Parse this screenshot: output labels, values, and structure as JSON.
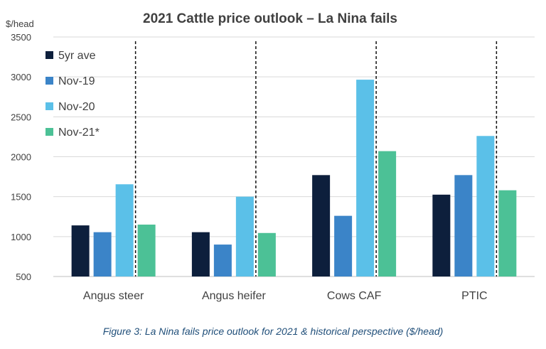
{
  "chart_data": {
    "type": "bar",
    "title": "2021 Cattle price outlook – La Nina fails",
    "ylabel": "$/head",
    "ylim": [
      500,
      3500
    ],
    "yticks": [
      500,
      1000,
      1500,
      2000,
      2500,
      3000,
      3500
    ],
    "grid": true,
    "legend_position": "top-left",
    "categories": [
      "Angus steer",
      "Angus heifer",
      "Cows CAF",
      "PTIC"
    ],
    "series": [
      {
        "name": "5yr ave",
        "color": "#0d1f3c",
        "values": [
          1140,
          1055,
          1770,
          1525
        ]
      },
      {
        "name": "Nov-19",
        "color": "#3b84c8",
        "values": [
          1055,
          900,
          1260,
          1770
        ]
      },
      {
        "name": "Nov-20",
        "color": "#5bc0e8",
        "values": [
          1655,
          1500,
          2965,
          2260
        ]
      },
      {
        "name": "Nov-21*",
        "color": "#4cc196",
        "values": [
          1150,
          1045,
          2070,
          1580
        ]
      }
    ],
    "divider_style": "dashed vertical line between Nov-20 and Nov-21* bars"
  },
  "caption": "Figure 3: La Nina fails price outlook for 2021 & historical perspective ($/head)"
}
